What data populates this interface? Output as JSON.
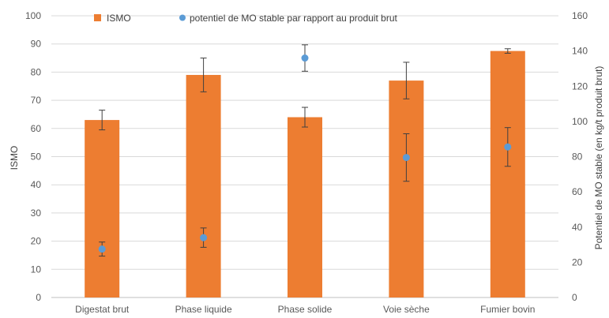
{
  "chart_data": {
    "type": "bar",
    "categories": [
      "Digestat brut",
      "Phase liquide",
      "Phase solide",
      "Voie sèche",
      "Fumier bovin"
    ],
    "series": [
      {
        "name": "ISMO",
        "kind": "bar",
        "axis": "left",
        "values": [
          63,
          79,
          64,
          77,
          87.5
        ],
        "error": [
          3.5,
          6,
          3.5,
          6.5,
          0.8
        ],
        "color": "#ED7D31"
      },
      {
        "name": "potentiel de MO stable par rapport au produit brut",
        "kind": "scatter",
        "axis": "right",
        "values": [
          27.5,
          34,
          136,
          79.5,
          85.5
        ],
        "error": [
          4,
          5.5,
          7.5,
          13.5,
          11
        ],
        "color": "#5B9BD5"
      }
    ],
    "ylabel": "ISMO",
    "y2label": "Potentiel de MO stable (en kg/t  produit brut)",
    "ylim": [
      0,
      100
    ],
    "y2lim": [
      0,
      160
    ],
    "yticks": [
      "0",
      "10",
      "20",
      "30",
      "40",
      "50",
      "60",
      "70",
      "80",
      "90",
      "100"
    ],
    "y2ticks": [
      "0",
      "20",
      "40",
      "60",
      "80",
      "100",
      "120",
      "140",
      "160"
    ],
    "grid": true,
    "legend": "top"
  }
}
